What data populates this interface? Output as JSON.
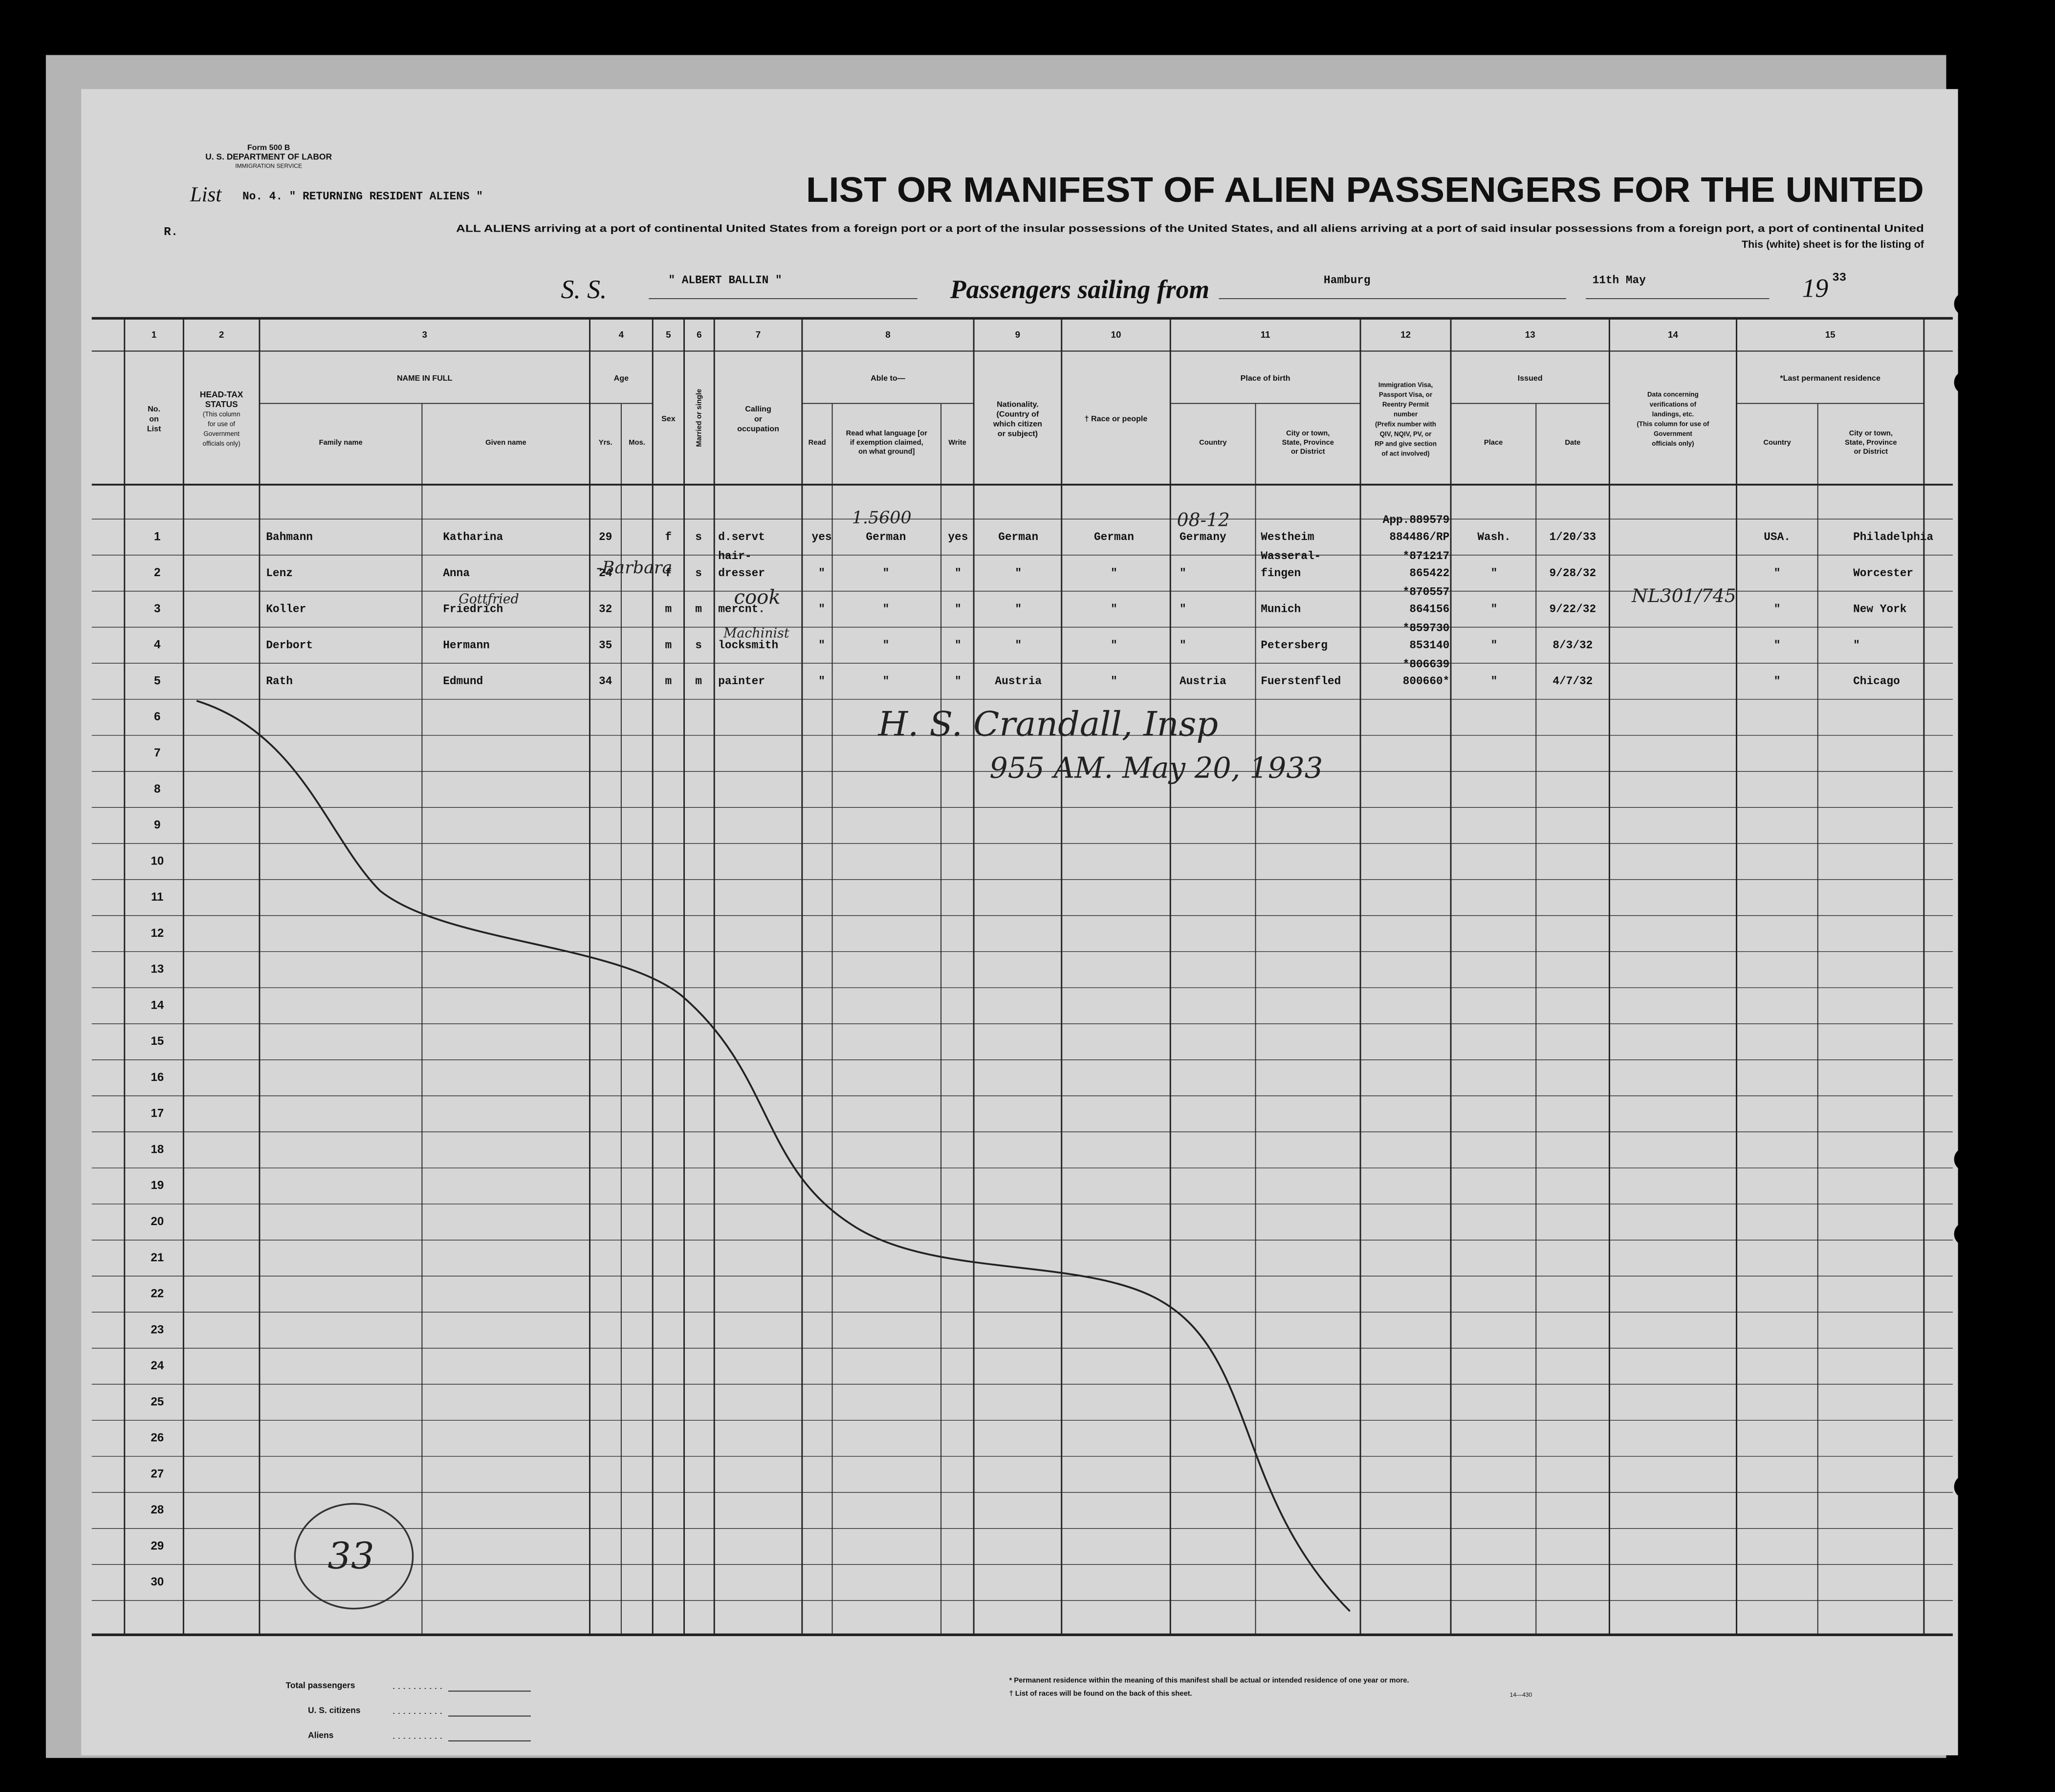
{
  "header": {
    "form": "Form 500 B",
    "department": "U. S. DEPARTMENT OF LABOR",
    "service": "IMMIGRATION SERVICE",
    "list_label": "List",
    "list_no": "No. 4. \" RETURNING RESIDENT ALIENS \"",
    "r_mark": "R.",
    "title": "LIST OR MANIFEST OF ALIEN PASSENGERS FOR THE UNITED",
    "subtitle": "ALL ALIENS arriving at a port of continental United States from a foreign port or a port of the insular possessions of the United States, and all aliens arriving at a port of said insular possessions from a foreign port, a port of continental United",
    "sheet_note": "This (white) sheet is for the listing of",
    "ss_label": "S. S.",
    "ship": "\" ALBERT BALLIN \"",
    "sailing_label": "Passengers sailing from",
    "port": "Hamburg",
    "date": "11th May",
    "year_prefix": "19",
    "year_suffix": "33"
  },
  "columns": [
    {
      "number": "1",
      "title": [
        "No.",
        "on",
        "List"
      ]
    },
    {
      "number": "2",
      "title": [
        "HEAD-TAX",
        "STATUS"
      ],
      "note": [
        "(This column",
        "for use of",
        "Government",
        "officials only)"
      ]
    },
    {
      "number": "3",
      "title": [
        "NAME IN FULL"
      ],
      "sub": [
        [
          "Family name"
        ],
        [
          "Given name"
        ]
      ]
    },
    {
      "number": "4",
      "title": [
        "Age"
      ],
      "sub": [
        [
          "Yrs."
        ],
        [
          "Mos."
        ]
      ]
    },
    {
      "number": "5",
      "title": [
        "Sex"
      ]
    },
    {
      "number": "6",
      "title": [
        "Married or single"
      ]
    },
    {
      "number": "7",
      "title": [
        "Calling",
        "or",
        "occupation"
      ]
    },
    {
      "number": "8",
      "title": [
        "Able to—"
      ],
      "sub": [
        [
          "Read"
        ],
        [
          "Read what language [or",
          "if exemption claimed,",
          "on what ground]"
        ],
        [
          "Write"
        ]
      ]
    },
    {
      "number": "9",
      "title": [
        "Nationality.",
        "(Country of",
        "which citizen",
        "or subject)"
      ]
    },
    {
      "number": "10",
      "title": [
        "† Race or people"
      ]
    },
    {
      "number": "11",
      "title": [
        "Place of birth"
      ],
      "sub": [
        [
          "Country"
        ],
        [
          "City or town,",
          "State, Province",
          "or District"
        ]
      ]
    },
    {
      "number": "12",
      "title": [
        "Immigration Visa,",
        "Passport Visa, or",
        "Reentry Permit",
        "number",
        "(Prefix number with",
        "QIV, NQIV, PV, or",
        "RP and give section",
        "of act involved)"
      ]
    },
    {
      "number": "13",
      "title": [
        "Issued"
      ],
      "sub": [
        [
          "Place"
        ],
        [
          "Date"
        ]
      ]
    },
    {
      "number": "14",
      "title": [
        "Data concerning",
        "verifications of",
        "landings, etc.",
        "(This column for use of",
        "Government",
        "officials only)"
      ]
    },
    {
      "number": "15",
      "title": [
        "*Last permanent residence"
      ],
      "sub": [
        [
          "Country"
        ],
        [
          "City or town,",
          "State, Province",
          "or District"
        ]
      ]
    }
  ],
  "rows": [
    {
      "no": "1",
      "family": "Bahmann",
      "given": "Katharina",
      "age": "29",
      "sex": "f",
      "status": "s",
      "calling": [
        "d.servt"
      ],
      "read": "yes",
      "language": "German",
      "write": "yes",
      "nationality": "German",
      "race": "German",
      "country": "Germany",
      "city": [
        "Westheim"
      ],
      "visa": [
        "App.889579",
        "884486/RP"
      ],
      "place": "Wash.",
      "date": "1/20/33",
      "residence_country": "USA.",
      "residence_city": "Philadelphia"
    },
    {
      "no": "2",
      "family": "Lenz",
      "given": "Anna",
      "age": "24",
      "sex": "f",
      "status": "s",
      "calling": [
        "hair-",
        "dresser"
      ],
      "read": "\"",
      "language": "\"",
      "write": "\"",
      "nationality": "\"",
      "race": "\"",
      "country": "\"",
      "city": [
        "Wasseral-",
        "fingen"
      ],
      "visa": [
        "*871217",
        "865422"
      ],
      "place": "\"",
      "date": "9/28/32",
      "residence_country": "\"",
      "residence_city": "Worcester"
    },
    {
      "no": "3",
      "family": "Koller",
      "given": "Friedrich",
      "age": "32",
      "sex": "m",
      "status": "m",
      "calling": [
        "mercnt."
      ],
      "read": "\"",
      "language": "\"",
      "write": "\"",
      "nationality": "\"",
      "race": "\"",
      "country": "\"",
      "city": [
        "Munich"
      ],
      "visa": [
        "*870557",
        "864156"
      ],
      "place": "\"",
      "date": "9/22/32",
      "residence_country": "\"",
      "residence_city": "New York"
    },
    {
      "no": "4",
      "family": "Derbort",
      "given": "Hermann",
      "age": "35",
      "sex": "m",
      "status": "s",
      "calling": [
        "locksmith"
      ],
      "read": "\"",
      "language": "\"",
      "write": "\"",
      "nationality": "\"",
      "race": "\"",
      "country": "\"",
      "city": [
        "Petersberg"
      ],
      "visa": [
        "*859730",
        "853140"
      ],
      "place": "\"",
      "date": "8/3/32",
      "residence_country": "\"",
      "residence_city": "\""
    },
    {
      "no": "5",
      "family": "Rath",
      "given": "Edmund",
      "age": "34",
      "sex": "m",
      "status": "m",
      "calling": [
        "painter"
      ],
      "read": "\"",
      "language": "\"",
      "write": "\"",
      "nationality": "Austria",
      "race": "\"",
      "country": "Austria",
      "city": [
        "Fuerstenfled"
      ],
      "visa": [
        "*806639",
        "800660*"
      ],
      "place": "\"",
      "date": "4/7/32",
      "residence_country": "\"",
      "residence_city": "Chicago"
    },
    {
      "no": "6"
    },
    {
      "no": "7"
    },
    {
      "no": "8"
    },
    {
      "no": "9"
    },
    {
      "no": "10"
    },
    {
      "no": "11"
    },
    {
      "no": "12"
    },
    {
      "no": "13"
    },
    {
      "no": "14"
    },
    {
      "no": "15"
    },
    {
      "no": "16"
    },
    {
      "no": "17"
    },
    {
      "no": "18"
    },
    {
      "no": "19"
    },
    {
      "no": "20"
    },
    {
      "no": "21"
    },
    {
      "no": "22"
    },
    {
      "no": "23"
    },
    {
      "no": "24"
    },
    {
      "no": "25"
    },
    {
      "no": "26"
    },
    {
      "no": "27"
    },
    {
      "no": "28"
    },
    {
      "no": "29"
    },
    {
      "no": "30"
    }
  ],
  "annotations": [
    "H. S. Crandall, Insp",
    "955 AM. May 20, 1933",
    "1.5600",
    "-Barbara",
    "Gottfried",
    "cook",
    "Machinist",
    "NL301/745",
    "08-12",
    "33"
  ],
  "footer": {
    "totals": [
      "Total passengers",
      "U. S. citizens",
      "Aliens"
    ],
    "notes": [
      "* Permanent residence within the meaning of this manifest shall be actual or intended residence of one year or more.",
      "† List of races will be found on the back of this sheet."
    ],
    "form_code": "14—430"
  }
}
